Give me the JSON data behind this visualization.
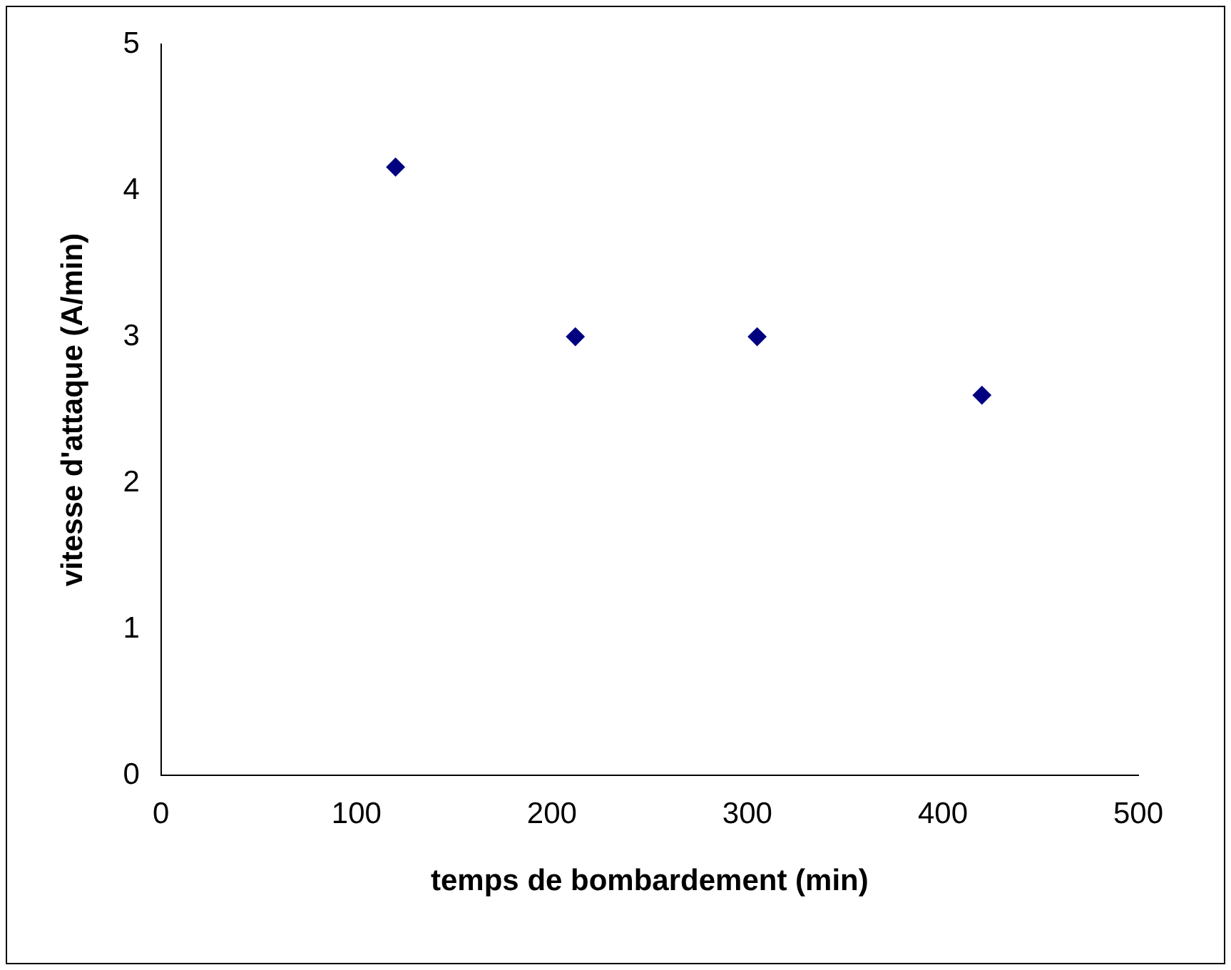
{
  "chart_data": {
    "type": "scatter",
    "xlabel": "temps de bombardement (min)",
    "ylabel": "vitesse d'attaque (A/min)",
    "x": [
      120,
      212,
      305,
      420
    ],
    "series": [
      {
        "color": "#000080",
        "values": [
          4.16,
          3.0,
          3.0,
          2.6
        ]
      }
    ],
    "xlim": [
      0,
      500
    ],
    "xticks": [
      0,
      100,
      200,
      300,
      400,
      500
    ],
    "ylim": [
      0,
      5
    ],
    "yticks": [
      0,
      1,
      2,
      3,
      4,
      5
    ],
    "grid": false,
    "legend": false,
    "marker": "diamond"
  }
}
